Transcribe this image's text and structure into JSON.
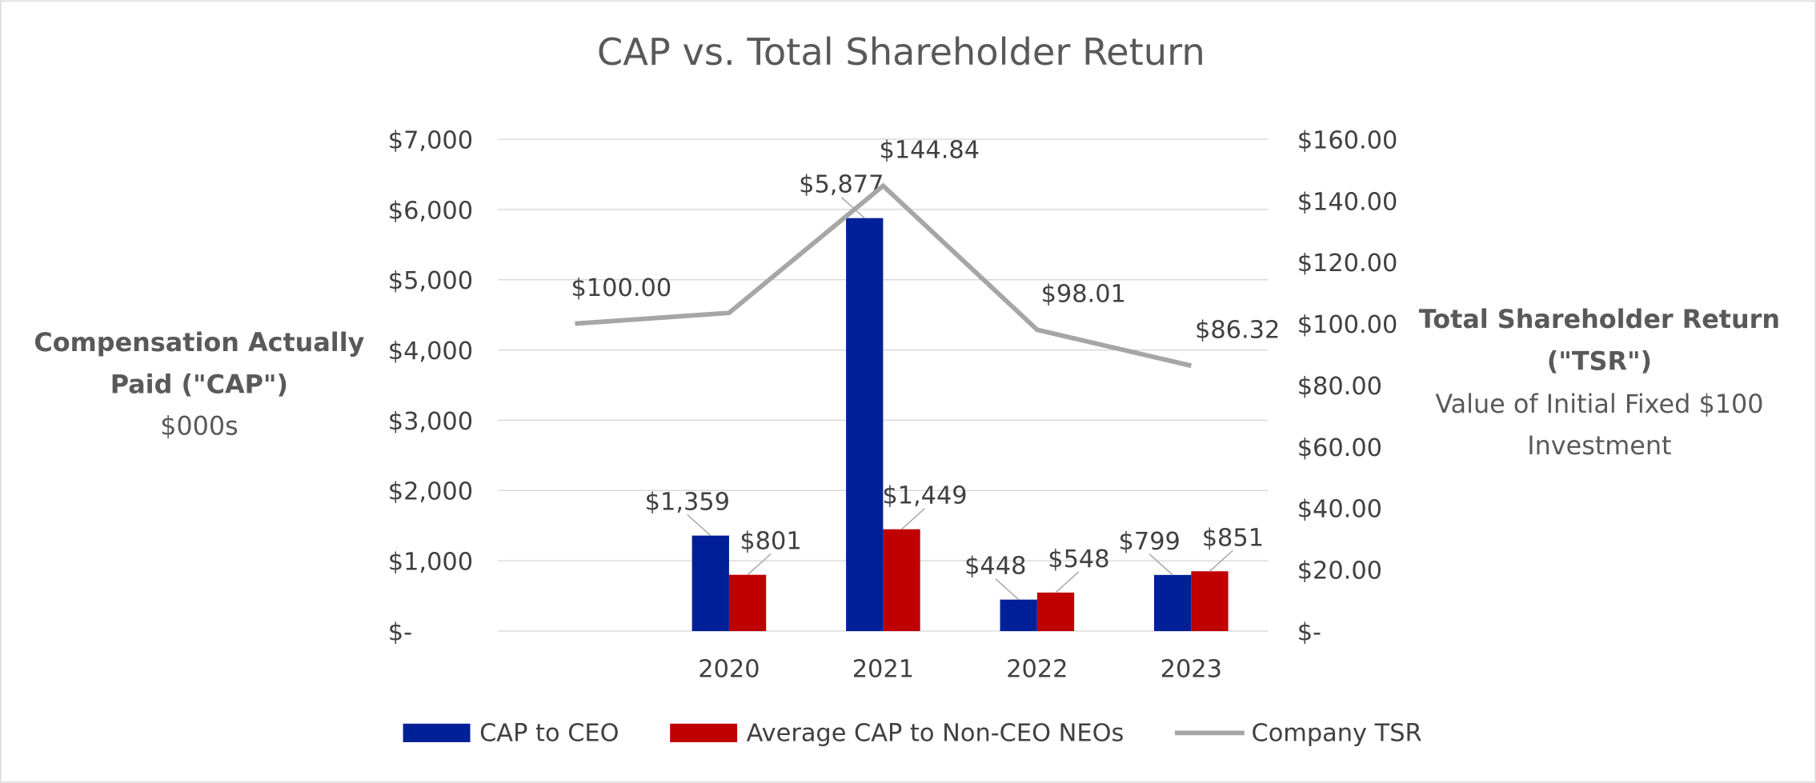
{
  "chart_data": {
    "type": "bar_line",
    "title": "CAP vs. Total Shareholder Return",
    "y_label": [
      "Compensation Actually",
      "Paid (\"CAP\")"
    ],
    "y_label_sub": "$000s",
    "y2_label": [
      "Total Shareholder Return",
      "(\"TSR\")"
    ],
    "y2_label_sub": [
      "Value of Initial Fixed $100",
      "Investment"
    ],
    "categories": [
      null,
      "2020",
      "2021",
      "2022",
      "2023"
    ],
    "ylim": [
      0,
      7000
    ],
    "yticks": [
      {
        "value": 0,
        "label": "$-"
      },
      {
        "value": 1000,
        "label": "$1,000"
      },
      {
        "value": 2000,
        "label": "$2,000"
      },
      {
        "value": 3000,
        "label": "$3,000"
      },
      {
        "value": 4000,
        "label": "$4,000"
      },
      {
        "value": 5000,
        "label": "$5,000"
      },
      {
        "value": 6000,
        "label": "$6,000"
      },
      {
        "value": 7000,
        "label": "$7,000"
      }
    ],
    "y2lim": [
      0,
      160
    ],
    "y2ticks": [
      {
        "value": 0,
        "label": "$-"
      },
      {
        "value": 20,
        "label": "$20.00"
      },
      {
        "value": 40,
        "label": "$40.00"
      },
      {
        "value": 60,
        "label": "$60.00"
      },
      {
        "value": 80,
        "label": "$80.00"
      },
      {
        "value": 100,
        "label": "$100.00"
      },
      {
        "value": 120,
        "label": "$120.00"
      },
      {
        "value": 140,
        "label": "$140.00"
      },
      {
        "value": 160,
        "label": "$160.00"
      }
    ],
    "grid": true,
    "legend": "bottom",
    "series": [
      {
        "name": "CAP to CEO",
        "type": "bar",
        "color": "#002097",
        "values": [
          null,
          1359,
          5877,
          448,
          799
        ],
        "value_labels": [
          null,
          "$1,359",
          "$5,877",
          "$448",
          "$799"
        ]
      },
      {
        "name": "Average CAP to Non-CEO NEOs",
        "type": "bar",
        "color": "#c00000",
        "values": [
          null,
          801,
          1449,
          548,
          851
        ],
        "value_labels": [
          null,
          "$801",
          "$1,449",
          "$548",
          "$851"
        ]
      },
      {
        "name": "Company TSR",
        "type": "line",
        "axis": "y2",
        "color": "#a6a6a6",
        "values": [
          100.0,
          103.5,
          144.84,
          98.01,
          86.32
        ],
        "value_labels": [
          "$100.00",
          null,
          "$144.84",
          "$98.01",
          "$86.32"
        ]
      }
    ]
  }
}
